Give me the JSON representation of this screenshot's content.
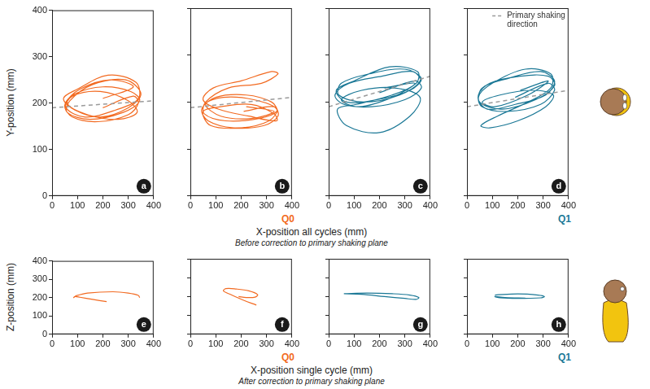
{
  "figure": {
    "rows": [
      {
        "y_title": "Y-position (mm)",
        "x_title": "X-position all cycles (mm)",
        "x_note": "Before correction to primary shaking plane"
      },
      {
        "y_title": "Z-position (mm)",
        "x_title": "X-position single cycle (mm)",
        "x_note": "After correction to primary shaking plane"
      }
    ]
  },
  "chart_data": [
    {
      "type": "line",
      "panel_label": "a",
      "color": "#f26a21",
      "grid": false,
      "xlim": [
        0,
        400
      ],
      "xticks": [
        0,
        100,
        200,
        300,
        400
      ],
      "ylim": [
        0,
        400
      ],
      "yticks": [
        0,
        100,
        200,
        300,
        400
      ],
      "x": [
        200,
        320,
        340,
        300,
        180,
        80,
        50,
        90,
        200,
        310,
        345,
        280,
        150,
        60,
        70,
        160,
        290,
        350,
        300,
        190,
        90,
        45,
        100,
        220,
        330,
        340,
        250,
        130,
        55,
        80,
        190,
        300,
        335,
        260,
        140,
        60,
        110,
        230,
        320,
        200
      ],
      "values": [
        190,
        215,
        200,
        175,
        160,
        170,
        195,
        220,
        235,
        225,
        205,
        180,
        165,
        180,
        205,
        240,
        250,
        220,
        190,
        170,
        185,
        210,
        230,
        260,
        245,
        210,
        185,
        170,
        190,
        215,
        225,
        205,
        180,
        165,
        175,
        200,
        230,
        250,
        235,
        210
      ],
      "reference_line": {
        "x": [
          0,
          400
        ],
        "values": [
          190,
          205
        ],
        "color": "#9a9a9a",
        "line_style": "dashed"
      }
    },
    {
      "type": "line",
      "panel_label": "b",
      "group_label": "Q0",
      "color": "#f26a21",
      "grid": false,
      "tick_labels": "x",
      "xlim": [
        0,
        400
      ],
      "xticks": [
        0,
        100,
        200,
        300,
        400
      ],
      "ylim": [
        0,
        400
      ],
      "yticks": [
        0,
        100,
        200,
        300,
        400
      ],
      "x": [
        210,
        330,
        345,
        290,
        170,
        70,
        45,
        100,
        220,
        320,
        340,
        270,
        140,
        55,
        60,
        150,
        280,
        345,
        320,
        200,
        90,
        50,
        110,
        230,
        340,
        330,
        240,
        120,
        50,
        80,
        200,
        310,
        340,
        250,
        130,
        60,
        120,
        240,
        330,
        220
      ],
      "values": [
        180,
        190,
        170,
        150,
        145,
        160,
        185,
        210,
        215,
        200,
        180,
        165,
        160,
        175,
        200,
        230,
        240,
        260,
        265,
        245,
        230,
        205,
        185,
        170,
        160,
        175,
        195,
        190,
        180,
        150,
        145,
        160,
        185,
        205,
        210,
        195,
        170,
        165,
        180,
        190
      ],
      "reference_line": {
        "x": [
          0,
          400
        ],
        "values": [
          188,
          210
        ],
        "color": "#9a9a9a",
        "line_style": "dashed"
      }
    },
    {
      "type": "line",
      "panel_label": "c",
      "color": "#1b7896",
      "grid": false,
      "tick_labels": "x",
      "xlim": [
        0,
        400
      ],
      "xticks": [
        0,
        100,
        200,
        300,
        400
      ],
      "ylim": [
        0,
        400
      ],
      "yticks": [
        0,
        100,
        200,
        300,
        400
      ],
      "x": [
        200,
        340,
        365,
        300,
        170,
        60,
        25,
        80,
        210,
        330,
        360,
        280,
        140,
        40,
        50,
        160,
        300,
        365,
        320,
        190,
        70,
        30,
        100,
        240,
        350,
        345,
        250,
        110,
        35,
        70,
        200,
        320,
        360,
        260,
        130,
        50,
        120,
        250,
        340,
        220
      ],
      "values": [
        220,
        245,
        230,
        205,
        190,
        195,
        215,
        240,
        255,
        265,
        245,
        215,
        200,
        215,
        240,
        260,
        270,
        250,
        225,
        205,
        200,
        225,
        245,
        275,
        265,
        240,
        215,
        195,
        185,
        150,
        135,
        170,
        210,
        230,
        225,
        205,
        190,
        210,
        240,
        230
      ],
      "reference_line": {
        "x": [
          0,
          400
        ],
        "values": [
          190,
          255
        ],
        "color": "#9a9a9a",
        "line_style": "dashed"
      }
    },
    {
      "type": "line",
      "panel_label": "d",
      "group_label": "Q1",
      "color": "#1b7896",
      "grid": false,
      "tick_labels": "x",
      "legend": "top-right",
      "xlim": [
        0,
        400
      ],
      "xticks": [
        0,
        100,
        200,
        300,
        400
      ],
      "ylim": [
        0,
        400
      ],
      "yticks": [
        0,
        100,
        200,
        300,
        400
      ],
      "x": [
        190,
        320,
        345,
        290,
        160,
        60,
        45,
        90,
        210,
        320,
        345,
        270,
        140,
        50,
        60,
        160,
        290,
        345,
        310,
        190,
        80,
        45,
        100,
        230,
        330,
        330,
        240,
        120,
        55,
        90,
        200,
        310,
        340,
        250,
        130,
        60,
        110,
        240,
        320,
        210
      ],
      "values": [
        210,
        240,
        225,
        195,
        180,
        190,
        215,
        240,
        255,
        255,
        235,
        205,
        185,
        200,
        230,
        250,
        265,
        245,
        215,
        195,
        185,
        210,
        240,
        270,
        260,
        230,
        200,
        170,
        150,
        145,
        160,
        190,
        215,
        225,
        215,
        200,
        190,
        215,
        245,
        225
      ],
      "reference_line": {
        "name": "Primary shaking direction",
        "x": [
          0,
          400
        ],
        "values": [
          190,
          225
        ],
        "color": "#9a9a9a",
        "line_style": "dashed"
      }
    },
    {
      "type": "line",
      "panel_label": "e",
      "color": "#f26a21",
      "grid": false,
      "xlim": [
        0,
        400
      ],
      "xticks": [
        0,
        100,
        200,
        300,
        400
      ],
      "ylim": [
        0,
        400
      ],
      "yticks": [
        0,
        100,
        200,
        300,
        400
      ],
      "x": [
        215,
        160,
        110,
        90,
        85,
        95,
        140,
        240,
        300,
        340,
        345
      ],
      "values": [
        178,
        190,
        202,
        206,
        200,
        210,
        225,
        232,
        225,
        212,
        200
      ]
    },
    {
      "type": "line",
      "panel_label": "f",
      "group_label": "Q0",
      "color": "#f26a21",
      "grid": false,
      "tick_labels": "x",
      "xlim": [
        0,
        400
      ],
      "xticks": [
        0,
        100,
        200,
        300,
        400
      ],
      "ylim": [
        0,
        400
      ],
      "yticks": [
        0,
        100,
        200,
        300,
        400
      ],
      "x": [
        260,
        210,
        160,
        130,
        140,
        180,
        230,
        265,
        255,
        220,
        190
      ],
      "values": [
        155,
        180,
        210,
        230,
        242,
        240,
        230,
        210,
        197,
        195,
        200
      ]
    },
    {
      "type": "line",
      "panel_label": "g",
      "color": "#1b7896",
      "grid": false,
      "tick_labels": "x",
      "xlim": [
        0,
        400
      ],
      "xticks": [
        0,
        100,
        200,
        300,
        400
      ],
      "ylim": [
        0,
        400
      ],
      "yticks": [
        0,
        100,
        200,
        300,
        400
      ],
      "x": [
        60,
        150,
        250,
        320,
        355,
        345,
        300,
        220,
        130,
        60
      ],
      "values": [
        215,
        218,
        215,
        208,
        195,
        185,
        190,
        200,
        212,
        215
      ]
    },
    {
      "type": "line",
      "panel_label": "h",
      "group_label": "Q1",
      "color": "#1b7896",
      "grid": false,
      "tick_labels": "x",
      "xlim": [
        0,
        400
      ],
      "xticks": [
        0,
        100,
        200,
        300,
        400
      ],
      "ylim": [
        0,
        400
      ],
      "yticks": [
        0,
        100,
        200,
        300,
        400
      ],
      "x": [
        110,
        200,
        280,
        305,
        290,
        200,
        130,
        110,
        150,
        230
      ],
      "values": [
        208,
        214,
        208,
        200,
        193,
        190,
        193,
        200,
        195,
        192
      ]
    }
  ]
}
